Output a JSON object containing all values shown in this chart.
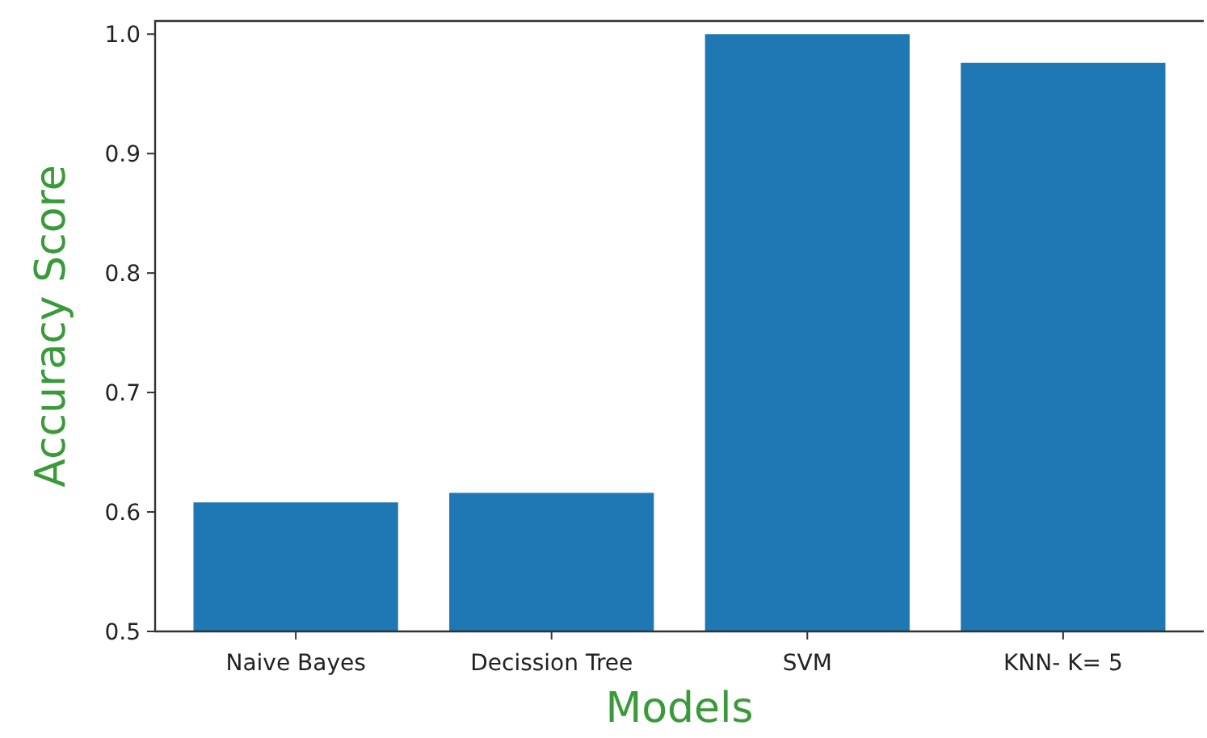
{
  "chart_data": {
    "type": "bar",
    "xlabel": "Models",
    "ylabel": "Accuracy Score",
    "categories": [
      "Naive Bayes",
      "Decission Tree",
      "SVM",
      "KNN- K= 5"
    ],
    "values": [
      0.608,
      0.616,
      1.0,
      0.976
    ],
    "color": "#1f77b4",
    "ylim": [
      0.5,
      1.011
    ],
    "yticks": [
      {
        "value": 0.5,
        "label": "0.5"
      },
      {
        "value": 0.6,
        "label": "0.6"
      },
      {
        "value": 0.7,
        "label": "0.7"
      },
      {
        "value": 0.8,
        "label": "0.8"
      },
      {
        "value": 0.9,
        "label": "0.9"
      },
      {
        "value": 1.0,
        "label": "1.0"
      }
    ],
    "grid": false
  }
}
